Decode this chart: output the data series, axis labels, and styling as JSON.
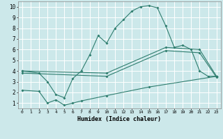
{
  "xlabel": "Humidex (Indice chaleur)",
  "bg_color": "#cce8ea",
  "grid_color": "#ffffff",
  "line_color": "#2e7d6e",
  "xlim": [
    -0.5,
    23.5
  ],
  "ylim": [
    0.5,
    10.5
  ],
  "xticks": [
    0,
    1,
    2,
    3,
    4,
    5,
    6,
    7,
    8,
    9,
    10,
    11,
    12,
    13,
    14,
    15,
    16,
    17,
    18,
    19,
    20,
    21,
    22,
    23
  ],
  "yticks": [
    1,
    2,
    3,
    4,
    5,
    6,
    7,
    8,
    9,
    10
  ],
  "curve1_x": [
    0,
    2,
    3,
    4,
    5,
    6,
    7,
    8,
    9,
    10,
    11,
    12,
    13,
    14,
    15,
    16,
    17,
    18,
    19,
    20,
    21,
    22,
    23
  ],
  "curve1_y": [
    4.0,
    3.8,
    3.0,
    1.8,
    1.5,
    3.3,
    4.0,
    5.5,
    7.3,
    6.6,
    8.0,
    8.8,
    9.6,
    10.0,
    10.1,
    9.9,
    8.2,
    6.2,
    6.4,
    6.0,
    4.0,
    3.5,
    3.5
  ],
  "curve2_x": [
    0,
    10,
    17,
    21,
    23
  ],
  "curve2_y": [
    4.0,
    3.8,
    6.2,
    6.0,
    3.5
  ],
  "curve3_x": [
    0,
    10,
    17,
    21,
    23
  ],
  "curve3_y": [
    3.8,
    3.5,
    5.9,
    5.7,
    3.4
  ],
  "curve4_x": [
    0,
    2,
    3,
    4,
    5,
    6,
    7,
    10,
    15,
    23
  ],
  "curve4_y": [
    2.2,
    2.1,
    1.0,
    1.3,
    0.8,
    1.0,
    1.2,
    1.7,
    2.5,
    3.5
  ]
}
